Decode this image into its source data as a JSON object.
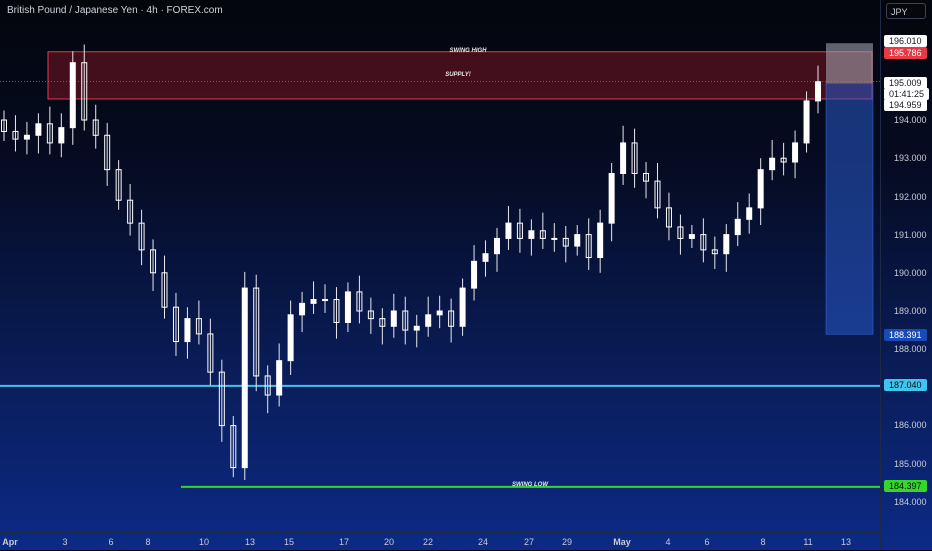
{
  "header": {
    "title": "British Pound / Japanese Yen · 4h · FOREX.com",
    "currency": "JPY"
  },
  "price_axis": {
    "ticks": [
      "196.010",
      "195.009",
      "01:41:25",
      "194.959",
      "194.000",
      "193.000",
      "192.000",
      "191.000",
      "190.000",
      "189.000",
      "188.000",
      "187.000",
      "186.000",
      "185.000",
      "184.000"
    ],
    "tags": {
      "swing_high": "195.786",
      "last_price": "195.009",
      "countdown": "01:41:25",
      "entry": "194.959",
      "target": "188.391",
      "support": "187.040",
      "swing_low": "184.397",
      "box_top": "196.010"
    }
  },
  "time_axis": {
    "labels": [
      "Apr",
      "3",
      "6",
      "8",
      "10",
      "13",
      "15",
      "17",
      "20",
      "22",
      "24",
      "27",
      "29",
      "May",
      "4",
      "6",
      "8",
      "11",
      "13"
    ]
  },
  "annotations": {
    "swing_high": "SWING HIGH",
    "supply": "SUPPLY!",
    "swing_low": "SWING LOW"
  },
  "colors": {
    "up": "#ffffff",
    "down": "#ffffff",
    "supply_border": "#e53946",
    "support_line": "#3fc6ef",
    "swing_low_line": "#35d72c"
  },
  "chart_data": {
    "type": "candlestick",
    "symbol": "GBPJPY",
    "timeframe": "4h",
    "ylim": [
      183.6,
      197.0
    ],
    "levels": [
      {
        "name": "SWING HIGH",
        "value": 195.786
      },
      {
        "name": "SUPPLY! lower",
        "value": 194.55
      },
      {
        "name": "support",
        "value": 187.04
      },
      {
        "name": "SWING LOW",
        "value": 184.397
      },
      {
        "name": "target",
        "value": 188.391
      }
    ],
    "closes_approx": [
      193.7,
      193.5,
      193.6,
      193.9,
      193.4,
      193.8,
      195.5,
      194.0,
      193.6,
      192.7,
      191.9,
      191.3,
      190.6,
      190.0,
      189.1,
      188.2,
      188.8,
      188.4,
      187.4,
      186.0,
      184.9,
      189.6,
      187.3,
      186.8,
      187.7,
      188.9,
      189.2,
      189.3,
      189.3,
      188.7,
      189.5,
      189.0,
      188.8,
      188.6,
      189.0,
      188.5,
      188.6,
      188.9,
      189.0,
      188.6,
      189.6,
      190.3,
      190.5,
      190.9,
      191.3,
      190.9,
      191.1,
      190.9,
      190.9,
      190.7,
      191.0,
      190.4,
      191.3,
      192.6,
      193.4,
      192.6,
      192.4,
      191.7,
      191.2,
      190.9,
      191.0,
      190.6,
      190.5,
      191.0,
      191.4,
      191.7,
      192.7,
      193.0,
      192.9,
      193.4,
      194.5,
      195.0
    ]
  }
}
